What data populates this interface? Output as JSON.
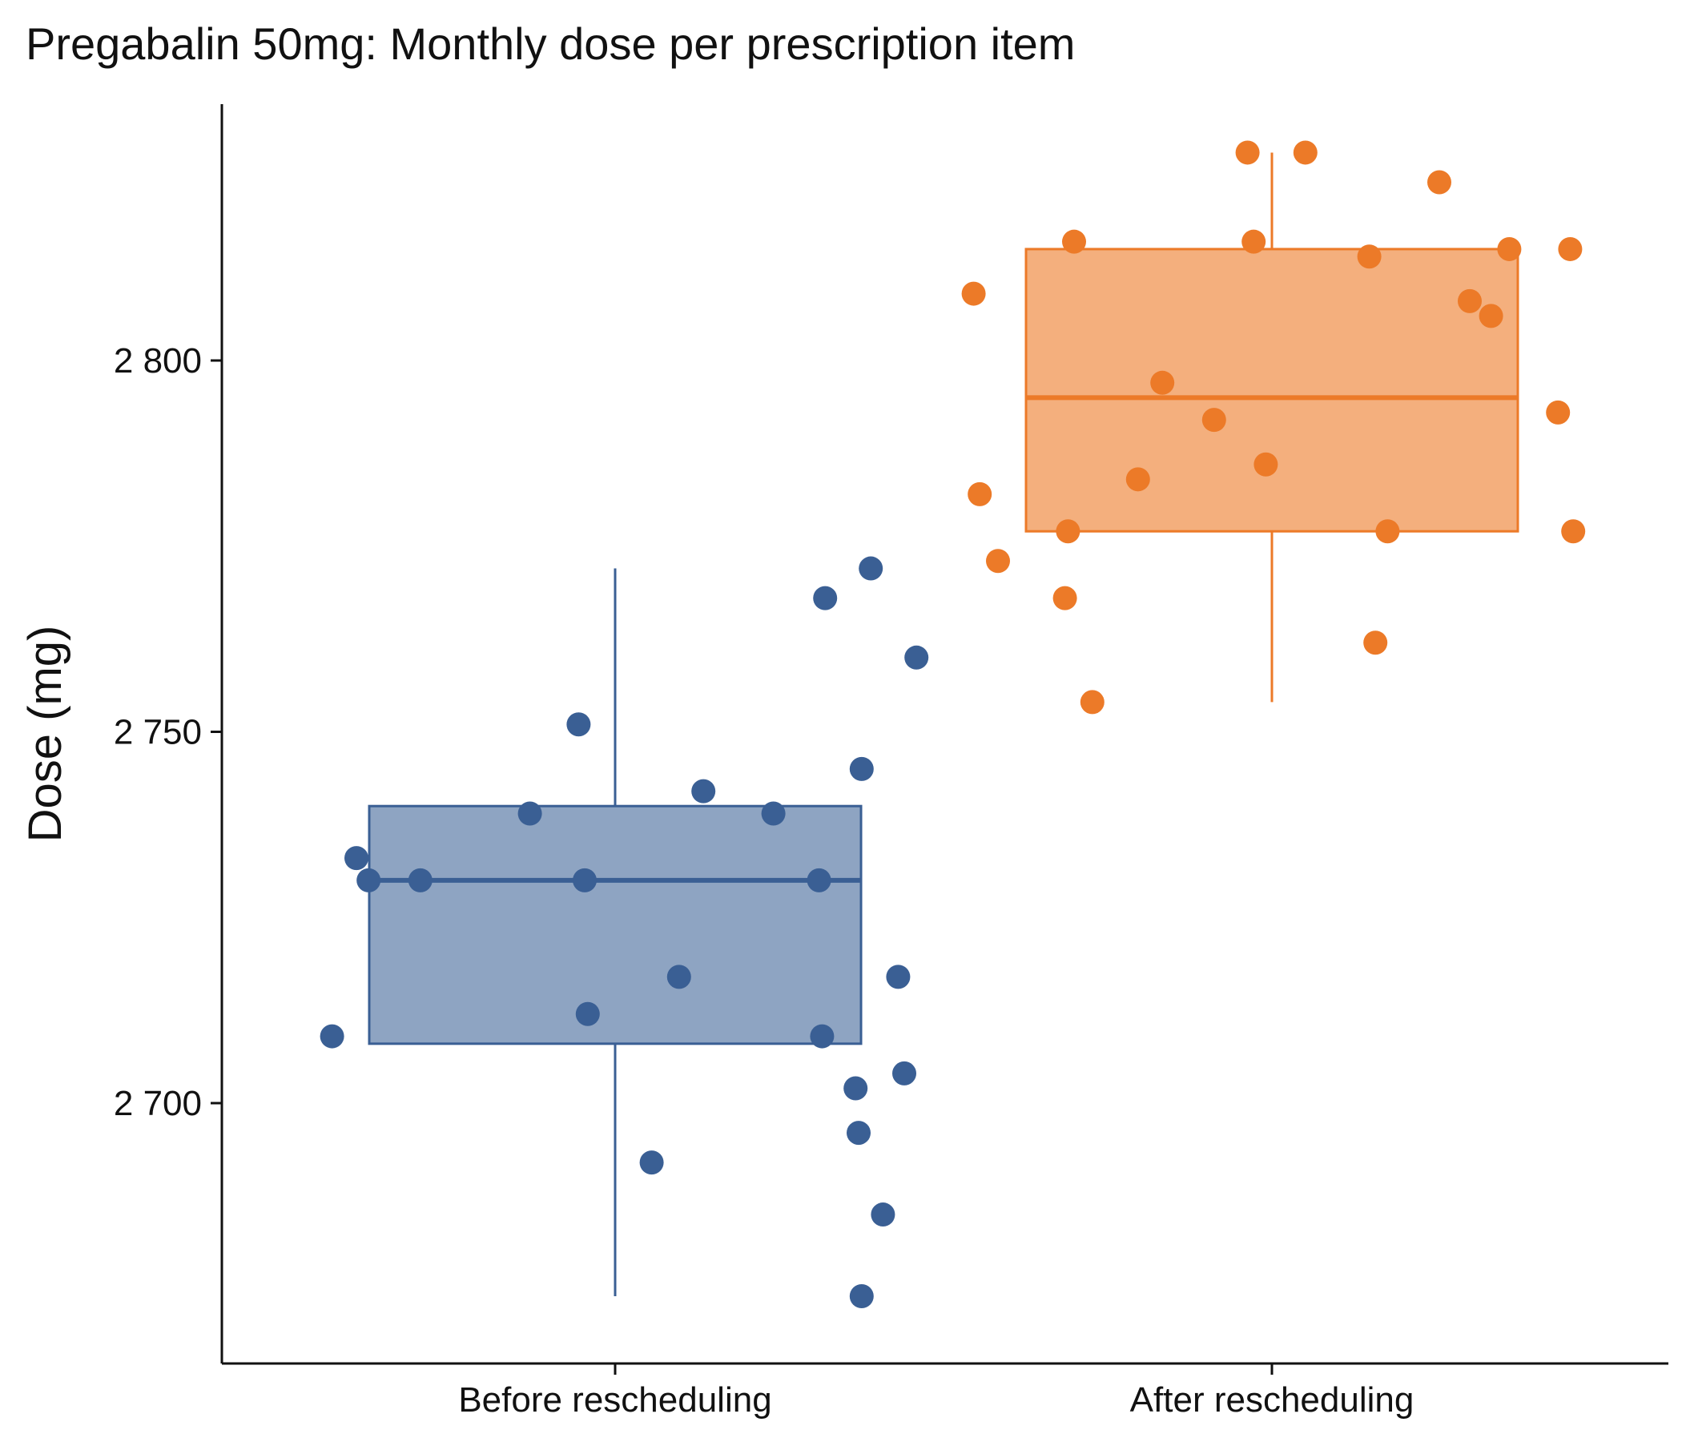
{
  "chart_data": {
    "type": "box",
    "title": "Pregabalin 50mg: Monthly dose per prescription item",
    "xlabel": "",
    "ylabel": "Dose (mg)",
    "ylim": [
      2668,
      2832
    ],
    "yticks": [
      2700,
      2750,
      2800
    ],
    "ytick_labels": [
      "2 700",
      "2 750",
      "2 800"
    ],
    "categories": [
      "Before rescheduling",
      "After rescheduling"
    ],
    "grid": false,
    "legend": "none",
    "series": [
      {
        "category": "Before rescheduling",
        "color": "#3a5f94",
        "fill": "#8ea4c2",
        "box": {
          "whisker_low": 2674,
          "q1": 2708,
          "median": 2730,
          "q3": 2740,
          "whisker_high": 2772
        },
        "points": [
          {
            "x": -0.93,
            "y": 2709
          },
          {
            "x": -0.85,
            "y": 2733
          },
          {
            "x": -0.81,
            "y": 2730
          },
          {
            "x": -0.64,
            "y": 2730
          },
          {
            "x": -0.28,
            "y": 2739
          },
          {
            "x": -0.12,
            "y": 2751
          },
          {
            "x": -0.1,
            "y": 2730
          },
          {
            "x": -0.09,
            "y": 2712
          },
          {
            "x": 0.12,
            "y": 2692
          },
          {
            "x": 0.21,
            "y": 2717
          },
          {
            "x": 0.29,
            "y": 2742
          },
          {
            "x": 0.52,
            "y": 2739
          },
          {
            "x": 0.67,
            "y": 2730
          },
          {
            "x": 0.68,
            "y": 2709
          },
          {
            "x": 0.69,
            "y": 2768
          },
          {
            "x": 0.79,
            "y": 2702
          },
          {
            "x": 0.8,
            "y": 2696
          },
          {
            "x": 0.81,
            "y": 2745
          },
          {
            "x": 0.81,
            "y": 2674
          },
          {
            "x": 0.84,
            "y": 2772
          },
          {
            "x": 0.88,
            "y": 2685
          },
          {
            "x": 0.93,
            "y": 2717
          },
          {
            "x": 0.95,
            "y": 2704
          },
          {
            "x": 0.99,
            "y": 2760
          }
        ]
      },
      {
        "category": "After rescheduling",
        "color": "#ec7a28",
        "fill": "#f4af7d",
        "box": {
          "whisker_low": 2754,
          "q1": 2777,
          "median": 2795,
          "q3": 2815,
          "whisker_high": 2828
        },
        "points": [
          {
            "x": -0.98,
            "y": 2809
          },
          {
            "x": -0.96,
            "y": 2782
          },
          {
            "x": -0.9,
            "y": 2773
          },
          {
            "x": -0.68,
            "y": 2768
          },
          {
            "x": -0.67,
            "y": 2777
          },
          {
            "x": -0.65,
            "y": 2816
          },
          {
            "x": -0.59,
            "y": 2754
          },
          {
            "x": -0.44,
            "y": 2784
          },
          {
            "x": -0.36,
            "y": 2797
          },
          {
            "x": -0.19,
            "y": 2792
          },
          {
            "x": -0.08,
            "y": 2828
          },
          {
            "x": -0.06,
            "y": 2816
          },
          {
            "x": -0.02,
            "y": 2786
          },
          {
            "x": 0.11,
            "y": 2828
          },
          {
            "x": 0.32,
            "y": 2814
          },
          {
            "x": 0.34,
            "y": 2762
          },
          {
            "x": 0.38,
            "y": 2777
          },
          {
            "x": 0.55,
            "y": 2824
          },
          {
            "x": 0.65,
            "y": 2808
          },
          {
            "x": 0.72,
            "y": 2806
          },
          {
            "x": 0.78,
            "y": 2815
          },
          {
            "x": 0.94,
            "y": 2793
          },
          {
            "x": 0.98,
            "y": 2815
          },
          {
            "x": 0.99,
            "y": 2777
          }
        ]
      }
    ]
  }
}
